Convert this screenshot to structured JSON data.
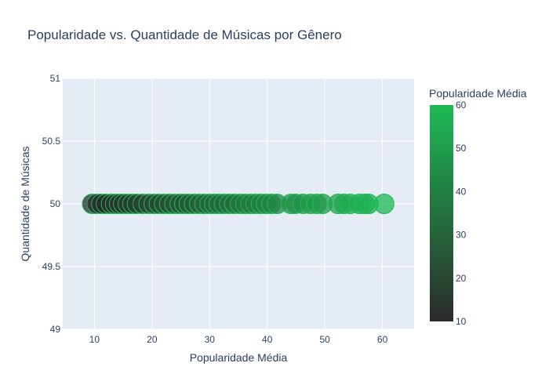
{
  "chart_data": {
    "type": "scatter",
    "title": "Popularidade vs. Quantidade de Músicas por Gênero",
    "xlabel": "Popularidade Média",
    "ylabel": "Quantidade de Músicas",
    "xlim": [
      4.5,
      65.5
    ],
    "ylim": [
      49,
      51
    ],
    "x_ticks": [
      "10",
      "20",
      "30",
      "40",
      "50",
      "60"
    ],
    "y_ticks": [
      "49",
      "49.5",
      "50",
      "50.5",
      "51"
    ],
    "grid": true,
    "colorbar": {
      "title": "Popularidade Média",
      "range": [
        10,
        60
      ],
      "ticks": [
        "10",
        "20",
        "30",
        "40",
        "50",
        "60"
      ],
      "colorscale": [
        "#2a2a2a",
        "#1db954"
      ]
    },
    "series": [
      {
        "x": [
          9.6,
          10.4,
          11.2,
          12.0,
          12.9,
          13.6,
          14.3,
          15.0,
          15.8,
          16.6,
          17.4,
          18.4,
          19.4,
          20.3,
          21.2,
          22.1,
          23.0,
          23.9,
          24.8,
          25.6,
          26.4,
          27.3,
          28.2,
          29.1,
          30.0,
          30.8,
          31.6,
          32.5,
          33.4,
          34.3,
          35.3,
          36.2,
          37.1,
          38.0,
          38.9,
          39.8,
          40.7,
          41.7,
          44.1,
          44.9,
          46.2,
          47.5,
          48.6,
          49.6,
          52.3,
          53.3,
          54.4,
          56.0,
          56.9,
          57.6,
          60.3
        ],
        "y": [
          50,
          50,
          50,
          50,
          50,
          50,
          50,
          50,
          50,
          50,
          50,
          50,
          50,
          50,
          50,
          50,
          50,
          50,
          50,
          50,
          50,
          50,
          50,
          50,
          50,
          50,
          50,
          50,
          50,
          50,
          50,
          50,
          50,
          50,
          50,
          50,
          50,
          50,
          50,
          50,
          50,
          50,
          50,
          50,
          50,
          50,
          50,
          50,
          50,
          50,
          50
        ],
        "color_value": "x"
      }
    ]
  }
}
